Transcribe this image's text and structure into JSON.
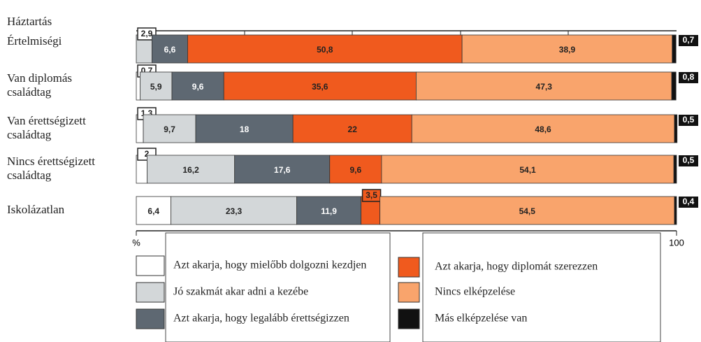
{
  "chart_data": {
    "type": "stacked-bar-horizontal",
    "row_header": "Háztartás",
    "categories": [
      "Értelmiségi",
      "Van diplomás családtag",
      "Van érettségizett családtag",
      "Nincs érettségizett családtag",
      "Iskolázatlan"
    ],
    "xlim": [
      0,
      100
    ],
    "xticks": [
      {
        "value": 0,
        "label": "%"
      },
      100
    ],
    "series": [
      {
        "name": "Azt akarja, hogy mielőbb dolgozni kezdjen",
        "color": "#ffffff",
        "values": [
          null,
          0.7,
          1.3,
          2,
          6.4
        ],
        "value_labels": [
          null,
          "0,7",
          "1,3",
          "2",
          "6,4"
        ]
      },
      {
        "name": "Jó szakmát akar adni a kezébe",
        "color": "#d3d7d9",
        "values": [
          2.9,
          5.9,
          9.7,
          16.2,
          23.3
        ],
        "value_labels": [
          "2,9",
          "5,9",
          "9,7",
          "16,2",
          "23,3"
        ]
      },
      {
        "name": "Azt akarja, hogy legalább érettségizzen",
        "color": "#5e6872",
        "values": [
          6.6,
          9.6,
          18,
          17.6,
          11.9
        ],
        "value_labels": [
          "6,6",
          "9,6",
          "18",
          "17,6",
          "11,9"
        ]
      },
      {
        "name": "Azt akarja, hogy diplomát szerezzen",
        "color": "#f05a1e",
        "values": [
          50.8,
          35.6,
          22,
          9.6,
          3.5
        ],
        "value_labels": [
          "50,8",
          "35,6",
          "22",
          "9,6",
          "3,5"
        ]
      },
      {
        "name": "Nincs elképzelése",
        "color": "#f9a46c",
        "values": [
          38.9,
          47.3,
          48.6,
          54.1,
          54.5
        ],
        "value_labels": [
          "38,9",
          "47,3",
          "48,6",
          "54,1",
          "54,5"
        ]
      },
      {
        "name": "Más elképzelése van",
        "color": "#111111",
        "values": [
          0.7,
          0.8,
          0.5,
          0.5,
          0.4
        ],
        "value_labels": [
          "0,7",
          "0,8",
          "0,5",
          "0,5",
          "0,4"
        ]
      }
    ]
  }
}
